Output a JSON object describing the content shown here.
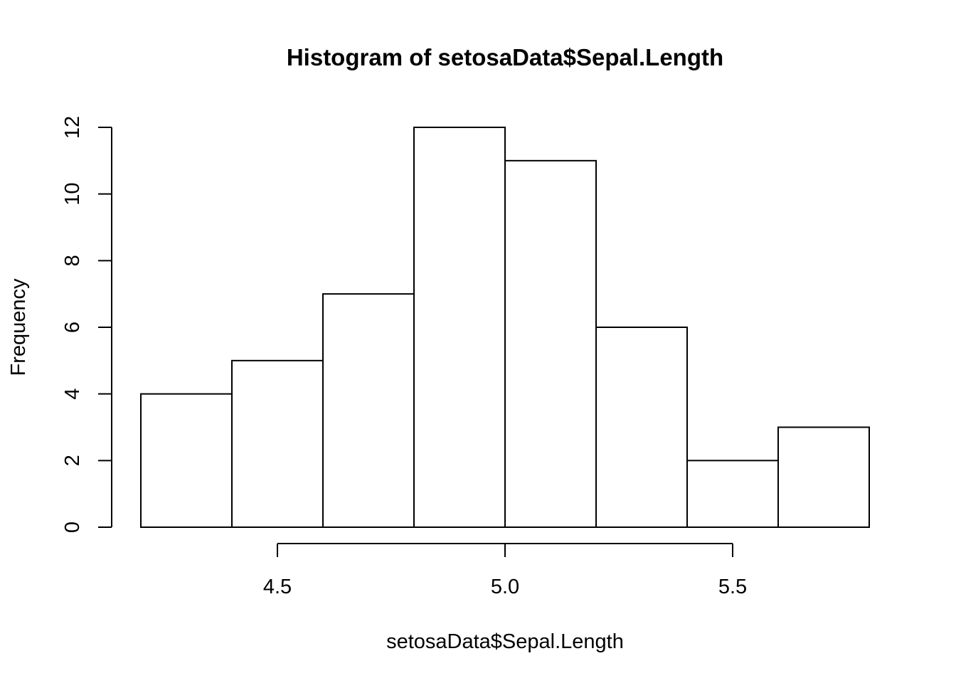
{
  "chart_data": {
    "type": "bar",
    "title": "Histogram of setosaData$Sepal.Length",
    "xlabel": "setosaData$Sepal.Length",
    "ylabel": "Frequency",
    "bins": [
      {
        "start": 4.2,
        "end": 4.4,
        "value": 4
      },
      {
        "start": 4.4,
        "end": 4.6,
        "value": 5
      },
      {
        "start": 4.6,
        "end": 4.8,
        "value": 7
      },
      {
        "start": 4.8,
        "end": 5.0,
        "value": 12
      },
      {
        "start": 5.0,
        "end": 5.2,
        "value": 11
      },
      {
        "start": 5.2,
        "end": 5.4,
        "value": 6
      },
      {
        "start": 5.4,
        "end": 5.6,
        "value": 2
      },
      {
        "start": 5.6,
        "end": 5.8,
        "value": 3
      }
    ],
    "x_ticks": [
      "4.5",
      "5.0",
      "5.5"
    ],
    "y_ticks": [
      "0",
      "2",
      "4",
      "6",
      "8",
      "10",
      "12"
    ],
    "xlim": [
      4.5,
      5.5
    ],
    "ylim": [
      0,
      12
    ],
    "grid": false,
    "bar_fill": "#ffffff",
    "bar_stroke": "#000000"
  }
}
